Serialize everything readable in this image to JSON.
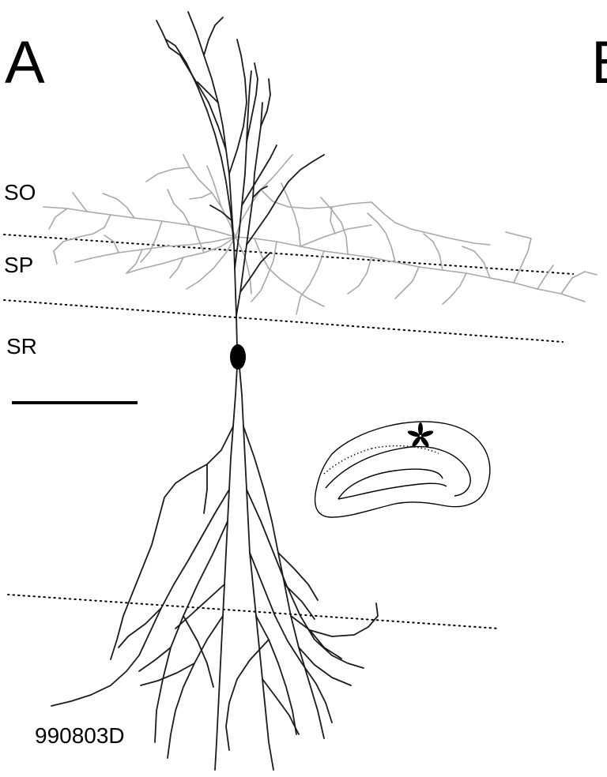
{
  "panel": {
    "letter": "A",
    "next_letter": "B"
  },
  "layers": {
    "so": "SO",
    "sp": "SP",
    "sr": "SR"
  },
  "cell_id": "990803D",
  "colors": {
    "apical_dendrites": "#1a1a1a",
    "basal_dendrites": "#a8a8a8",
    "boundaries": "#000000",
    "soma": "#000000"
  },
  "icons": {
    "scale_bar": "scale-bar",
    "location_marker": "asterisk-icon",
    "inset": "hippocampus-outline"
  }
}
